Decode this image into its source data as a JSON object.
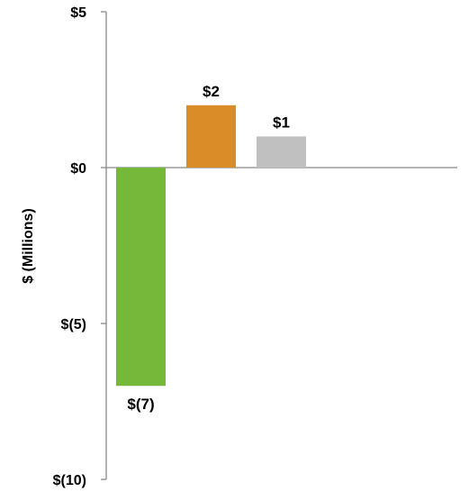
{
  "chart_data": {
    "type": "bar",
    "categories": [
      "",
      "",
      ""
    ],
    "values": [
      -7,
      2,
      1
    ],
    "data_labels": [
      "$(7)",
      "$2",
      "$1"
    ],
    "colors": [
      "#76b83a",
      "#d98c27",
      "#c0c0c0"
    ],
    "title": "",
    "xlabel": "",
    "ylabel": "$ (Millions)",
    "ylim": [
      -10,
      5
    ],
    "y_ticks": [
      {
        "value": 5,
        "label": "$5"
      },
      {
        "value": 0,
        "label": "$0"
      },
      {
        "value": -5,
        "label": "$(5)"
      },
      {
        "value": -10,
        "label": "$(10)"
      }
    ],
    "grid": false,
    "legend": "none",
    "axis_color": "#888888"
  }
}
